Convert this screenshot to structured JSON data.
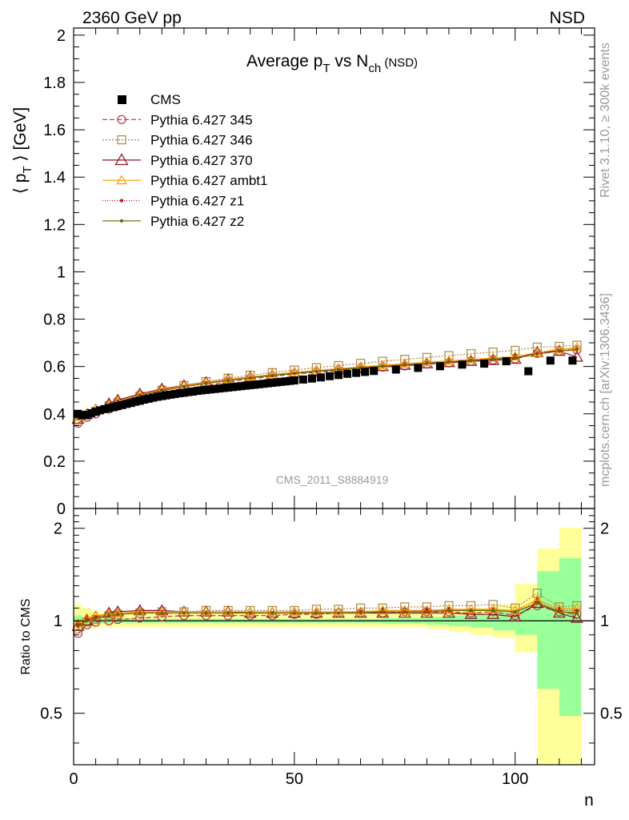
{
  "header": {
    "left": "2360 GeV pp",
    "right": "NSD"
  },
  "side_labels": {
    "rivet": "Rivet 3.1.10, ≥ 300k events",
    "mcplots": "mcplots.cern.ch [arXiv:1306.3436]"
  },
  "watermark": "CMS_2011_S8884919",
  "chart_data": [
    {
      "type": "line",
      "title_parts": {
        "a": "Average p",
        "a_sub": "T",
        "b": " vs N",
        "b_sub": "ch",
        "c": " (NSD)"
      },
      "ylabel_parts": {
        "a": "⟨ p",
        "sub": "T",
        "b": " ⟩ [GeV]"
      },
      "xlabel": "n",
      "xlim": [
        0,
        118
      ],
      "ylim": [
        0,
        2.03
      ],
      "x_ticks": [
        0,
        50,
        100
      ],
      "y_ticks": [
        0,
        0.2,
        0.4,
        0.6,
        0.8,
        1,
        1.2,
        1.4,
        1.6,
        1.8,
        2
      ],
      "y_tick_labels": [
        "0",
        "0.2",
        "0.4",
        "0.6",
        "0.8",
        "1",
        "1.2",
        "1.4",
        "1.6",
        "1.8",
        "2"
      ],
      "legend_position": "top-left",
      "data": {
        "name": "CMS",
        "x": [
          1,
          2,
          3,
          4,
          5,
          6,
          7,
          8,
          9,
          10,
          11,
          12,
          13,
          14,
          15,
          16,
          17,
          18,
          19,
          20,
          21,
          22,
          23,
          24,
          25,
          26,
          27,
          28,
          29,
          30,
          31,
          32,
          33,
          34,
          35,
          36,
          37,
          38,
          39,
          40,
          41,
          42,
          43,
          44,
          45,
          46,
          47,
          48,
          49,
          50,
          52,
          54,
          56,
          58,
          60,
          62,
          64,
          66,
          68,
          73,
          78,
          83,
          88,
          93,
          98,
          103,
          108,
          113
        ],
        "y": [
          0.4,
          0.394,
          0.396,
          0.403,
          0.409,
          0.415,
          0.42,
          0.424,
          0.428,
          0.433,
          0.437,
          0.442,
          0.446,
          0.451,
          0.455,
          0.46,
          0.464,
          0.468,
          0.472,
          0.475,
          0.478,
          0.481,
          0.484,
          0.487,
          0.489,
          0.492,
          0.494,
          0.497,
          0.499,
          0.501,
          0.503,
          0.505,
          0.507,
          0.509,
          0.511,
          0.513,
          0.515,
          0.517,
          0.519,
          0.521,
          0.523,
          0.525,
          0.527,
          0.529,
          0.531,
          0.533,
          0.535,
          0.537,
          0.539,
          0.541,
          0.545,
          0.549,
          0.554,
          0.559,
          0.564,
          0.569,
          0.573,
          0.577,
          0.581,
          0.587,
          0.594,
          0.601,
          0.608,
          0.612,
          0.622,
          0.58,
          0.625,
          0.625
        ]
      },
      "series": [
        {
          "name": "Pythia 6.427 345",
          "color": "#bb3344",
          "dash": "6,3",
          "marker": "circle",
          "x": [
            1,
            3,
            5,
            8,
            10,
            15,
            20,
            25,
            30,
            35,
            40,
            45,
            50,
            55,
            60,
            65,
            70,
            75,
            80,
            85,
            90,
            95,
            100,
            105,
            110,
            114
          ],
          "y": [
            0.36,
            0.385,
            0.4,
            0.42,
            0.432,
            0.458,
            0.483,
            0.503,
            0.52,
            0.535,
            0.548,
            0.558,
            0.568,
            0.575,
            0.583,
            0.59,
            0.597,
            0.602,
            0.61,
            0.615,
            0.622,
            0.627,
            0.632,
            0.655,
            0.665,
            0.67
          ]
        },
        {
          "name": "Pythia 6.427 346",
          "color": "#aa8844",
          "dash": "2,2",
          "marker": "square",
          "x": [
            1,
            3,
            5,
            8,
            10,
            15,
            20,
            25,
            30,
            35,
            40,
            45,
            50,
            55,
            60,
            65,
            70,
            75,
            80,
            85,
            90,
            95,
            100,
            105,
            110,
            114
          ],
          "y": [
            0.37,
            0.393,
            0.41,
            0.433,
            0.447,
            0.475,
            0.5,
            0.52,
            0.536,
            0.55,
            0.563,
            0.574,
            0.585,
            0.595,
            0.604,
            0.613,
            0.622,
            0.63,
            0.638,
            0.646,
            0.654,
            0.661,
            0.668,
            0.682,
            0.685,
            0.69
          ]
        },
        {
          "name": "Pythia 6.427 370",
          "color": "#881122",
          "dash": "",
          "marker": "triangle",
          "x": [
            1,
            3,
            5,
            8,
            10,
            15,
            20,
            25,
            30,
            35,
            40,
            45,
            50,
            55,
            60,
            65,
            70,
            75,
            80,
            85,
            90,
            95,
            100,
            105,
            110,
            114
          ],
          "y": [
            0.378,
            0.398,
            0.417,
            0.443,
            0.458,
            0.484,
            0.505,
            0.52,
            0.533,
            0.545,
            0.555,
            0.564,
            0.572,
            0.58,
            0.587,
            0.594,
            0.6,
            0.606,
            0.612,
            0.617,
            0.622,
            0.626,
            0.631,
            0.66,
            0.665,
            0.64
          ]
        },
        {
          "name": "Pythia 6.427 ambt1",
          "color": "#ff9900",
          "dash": "",
          "marker": "triangle-open",
          "x": [
            1,
            3,
            5,
            8,
            10,
            15,
            20,
            25,
            30,
            35,
            40,
            45,
            50,
            55,
            60,
            65,
            70,
            75,
            80,
            85,
            90,
            95,
            100,
            105,
            110,
            114
          ],
          "y": [
            0.388,
            0.404,
            0.42,
            0.438,
            0.452,
            0.48,
            0.502,
            0.518,
            0.532,
            0.545,
            0.556,
            0.566,
            0.575,
            0.583,
            0.591,
            0.598,
            0.605,
            0.612,
            0.618,
            0.624,
            0.63,
            0.636,
            0.642,
            0.658,
            0.672,
            0.68
          ]
        },
        {
          "name": "Pythia 6.427 z1",
          "color": "#cc1111",
          "dash": "1,2",
          "marker": "dot",
          "x": [
            1,
            3,
            5,
            8,
            10,
            15,
            20,
            25,
            30,
            35,
            40,
            45,
            50,
            55,
            60,
            65,
            70,
            75,
            80,
            85,
            90,
            95,
            100,
            105,
            110,
            114
          ],
          "y": [
            0.385,
            0.402,
            0.418,
            0.437,
            0.45,
            0.477,
            0.499,
            0.515,
            0.529,
            0.542,
            0.553,
            0.563,
            0.572,
            0.58,
            0.588,
            0.595,
            0.602,
            0.608,
            0.614,
            0.62,
            0.626,
            0.632,
            0.638,
            0.655,
            0.668,
            0.675
          ]
        },
        {
          "name": "Pythia 6.427 z2",
          "color": "#666600",
          "dash": "",
          "marker": "dot",
          "x": [
            1,
            3,
            5,
            8,
            10,
            15,
            20,
            25,
            30,
            35,
            40,
            45,
            50,
            55,
            60,
            65,
            70,
            75,
            80,
            85,
            90,
            95,
            100,
            105,
            110,
            114
          ],
          "y": [
            0.382,
            0.4,
            0.416,
            0.436,
            0.449,
            0.476,
            0.498,
            0.514,
            0.528,
            0.541,
            0.552,
            0.562,
            0.571,
            0.579,
            0.587,
            0.594,
            0.601,
            0.607,
            0.613,
            0.619,
            0.625,
            0.631,
            0.637,
            0.652,
            0.665,
            0.672
          ]
        }
      ]
    },
    {
      "type": "line",
      "ylabel": "Ratio to CMS",
      "xlabel": "n",
      "xlim": [
        0,
        118
      ],
      "ylim": [
        0.34,
        2.32
      ],
      "log_y": true,
      "x_ticks": [
        0,
        50,
        100
      ],
      "x_tick_labels": [
        "0",
        "50",
        "100"
      ],
      "y_ticks": [
        0.5,
        1,
        2
      ],
      "y_tick_labels": [
        "0.5",
        "1",
        "2"
      ],
      "band_edges": [
        0,
        2,
        4,
        6,
        10,
        15,
        20,
        30,
        40,
        50,
        60,
        70,
        80,
        85,
        90,
        95,
        100,
        105,
        110,
        115
      ],
      "stat_band": {
        "color": "#99ff99",
        "lo": [
          0.96,
          0.97,
          0.975,
          0.98,
          0.985,
          0.985,
          0.985,
          0.985,
          0.985,
          0.985,
          0.985,
          0.98,
          0.97,
          0.96,
          0.95,
          0.93,
          0.9,
          0.6,
          0.49
        ],
        "hi": [
          1.04,
          1.03,
          1.025,
          1.02,
          1.015,
          1.015,
          1.015,
          1.015,
          1.015,
          1.015,
          1.015,
          1.02,
          1.03,
          1.04,
          1.05,
          1.07,
          1.1,
          1.45,
          1.6
        ]
      },
      "syst_band": {
        "color": "#ffff99",
        "lo": [
          0.93,
          0.94,
          0.945,
          0.95,
          0.955,
          0.955,
          0.955,
          0.955,
          0.955,
          0.955,
          0.955,
          0.95,
          0.94,
          0.92,
          0.9,
          0.88,
          0.79,
          0.34,
          0.34
        ],
        "hi": [
          1.13,
          1.1,
          1.08,
          1.06,
          1.05,
          1.05,
          1.05,
          1.05,
          1.05,
          1.05,
          1.05,
          1.06,
          1.07,
          1.09,
          1.1,
          1.13,
          1.32,
          1.72,
          2.01
        ]
      },
      "series": [
        {
          "name": "Pythia 6.427 345",
          "x": [
            1,
            3,
            5,
            8,
            10,
            15,
            20,
            25,
            30,
            35,
            40,
            45,
            50,
            55,
            60,
            65,
            70,
            75,
            80,
            85,
            90,
            95,
            100,
            105,
            110,
            114
          ],
          "y": [
            0.91,
            0.97,
            0.99,
            1.0,
            1.01,
            1.02,
            1.03,
            1.04,
            1.04,
            1.04,
            1.04,
            1.04,
            1.05,
            1.05,
            1.06,
            1.06,
            1.06,
            1.07,
            1.07,
            1.07,
            1.06,
            1.07,
            1.04,
            1.12,
            1.07,
            1.05
          ]
        },
        {
          "name": "Pythia 6.427 346",
          "x": [
            1,
            3,
            5,
            8,
            10,
            15,
            20,
            25,
            30,
            35,
            40,
            45,
            50,
            55,
            60,
            65,
            70,
            75,
            80,
            85,
            90,
            95,
            100,
            105,
            110,
            114
          ],
          "y": [
            0.94,
            0.99,
            1.01,
            1.04,
            1.05,
            1.06,
            1.07,
            1.07,
            1.08,
            1.08,
            1.08,
            1.08,
            1.08,
            1.09,
            1.09,
            1.1,
            1.1,
            1.11,
            1.11,
            1.12,
            1.12,
            1.13,
            1.1,
            1.23,
            1.11,
            1.12
          ]
        },
        {
          "name": "Pythia 6.427 370",
          "x": [
            1,
            3,
            5,
            8,
            10,
            15,
            20,
            25,
            30,
            35,
            40,
            45,
            50,
            55,
            60,
            65,
            70,
            75,
            80,
            85,
            90,
            95,
            100,
            105,
            110,
            114
          ],
          "y": [
            0.96,
            1.0,
            1.03,
            1.06,
            1.07,
            1.08,
            1.08,
            1.07,
            1.07,
            1.07,
            1.06,
            1.06,
            1.06,
            1.06,
            1.06,
            1.06,
            1.06,
            1.06,
            1.06,
            1.06,
            1.05,
            1.05,
            1.03,
            1.14,
            1.06,
            1.02
          ]
        },
        {
          "name": "Pythia 6.427 ambt1",
          "x": [
            1,
            3,
            5,
            8,
            10,
            15,
            20,
            25,
            30,
            35,
            40,
            45,
            50,
            55,
            60,
            65,
            70,
            75,
            80,
            85,
            90,
            95,
            100,
            105,
            110,
            114
          ],
          "y": [
            0.98,
            1.02,
            1.04,
            1.05,
            1.06,
            1.07,
            1.07,
            1.07,
            1.07,
            1.07,
            1.07,
            1.07,
            1.07,
            1.07,
            1.07,
            1.07,
            1.08,
            1.08,
            1.08,
            1.09,
            1.09,
            1.09,
            1.08,
            1.17,
            1.09,
            1.1
          ]
        },
        {
          "name": "Pythia 6.427 z1",
          "x": [
            1,
            3,
            5,
            8,
            10,
            15,
            20,
            25,
            30,
            35,
            40,
            45,
            50,
            55,
            60,
            65,
            70,
            75,
            80,
            85,
            90,
            95,
            100,
            105,
            110,
            114
          ],
          "y": [
            0.97,
            1.01,
            1.03,
            1.04,
            1.05,
            1.06,
            1.06,
            1.06,
            1.06,
            1.06,
            1.06,
            1.06,
            1.06,
            1.06,
            1.06,
            1.07,
            1.07,
            1.07,
            1.08,
            1.08,
            1.08,
            1.08,
            1.07,
            1.15,
            1.08,
            1.08
          ]
        },
        {
          "name": "Pythia 6.427 z2",
          "x": [
            1,
            3,
            5,
            8,
            10,
            15,
            20,
            25,
            30,
            35,
            40,
            45,
            50,
            55,
            60,
            65,
            70,
            75,
            80,
            85,
            90,
            95,
            100,
            105,
            110,
            114
          ],
          "y": [
            0.96,
            1.0,
            1.02,
            1.04,
            1.05,
            1.06,
            1.06,
            1.06,
            1.06,
            1.06,
            1.06,
            1.06,
            1.06,
            1.06,
            1.06,
            1.06,
            1.07,
            1.07,
            1.07,
            1.08,
            1.08,
            1.08,
            1.07,
            1.14,
            1.07,
            1.06
          ]
        }
      ]
    }
  ]
}
